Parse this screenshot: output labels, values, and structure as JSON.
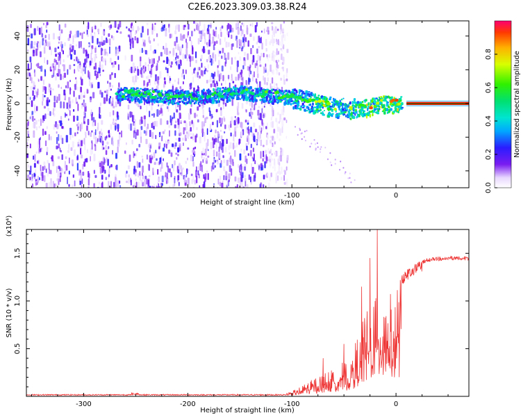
{
  "title": "C2E6.2023.309.03.38.R24",
  "chart_data": [
    {
      "type": "heatmap",
      "xlabel": "Height of straight line (km)",
      "ylabel": "Frequency (Hz)",
      "xlim": [
        -355,
        70
      ],
      "ylim": [
        -50,
        49
      ],
      "xticks": [
        -300,
        -200,
        -100,
        0
      ],
      "yticks": [
        -40,
        -20,
        0,
        20,
        40
      ],
      "colorbar": {
        "label": "Normalized spectral amplitude",
        "range": [
          0,
          1
        ],
        "ticks": [
          0.0,
          0.2,
          0.4,
          0.6,
          0.8
        ],
        "tick_labels": [
          "0.0",
          "0.2",
          "0.4",
          "0.6",
          "0.8"
        ]
      },
      "description_points": {
        "ridge_center_hz": [
          {
            "x": -260,
            "y": 6
          },
          {
            "x": -200,
            "y": 4
          },
          {
            "x": -150,
            "y": 7
          },
          {
            "x": -100,
            "y": 4
          },
          {
            "x": -60,
            "y": -2
          },
          {
            "x": -35,
            "y": -3
          },
          {
            "x": -15,
            "y": 0
          },
          {
            "x": 70,
            "y": 0
          }
        ],
        "noise_extent_x": [
          -355,
          -105
        ],
        "steady_line_x": [
          10,
          70
        ]
      }
    },
    {
      "type": "line",
      "xlabel": "Height of straight line (km)",
      "ylabel": "SNR (10 * v/v)",
      "y_multiplier": "(x10⁴)",
      "xlim": [
        -355,
        70
      ],
      "ylim": [
        0,
        1.75
      ],
      "xticks": [
        -300,
        -200,
        -100,
        0
      ],
      "yticks": [
        0.5,
        1.0,
        1.5
      ],
      "ytick_labels": [
        "0.5",
        "1.0",
        "1.5"
      ],
      "series": [
        {
          "color": "#ee3333",
          "envelope": [
            {
              "x": -355,
              "y": 0.01
            },
            {
              "x": -250,
              "y": 0.03
            },
            {
              "x": -120,
              "y": 0.02
            },
            {
              "x": -100,
              "y": 0.05
            },
            {
              "x": -80,
              "y": 0.18
            },
            {
              "x": -60,
              "y": 0.3
            },
            {
              "x": -45,
              "y": 0.4
            },
            {
              "x": -30,
              "y": 0.85
            },
            {
              "x": -20,
              "y": 1.1
            },
            {
              "x": -10,
              "y": 1.15
            },
            {
              "x": 0,
              "y": 1.22
            },
            {
              "x": 15,
              "y": 1.38
            },
            {
              "x": 30,
              "y": 1.45
            },
            {
              "x": 50,
              "y": 1.47
            },
            {
              "x": 70,
              "y": 1.47
            }
          ],
          "spikes": [
            {
              "x": -18,
              "y": 1.75
            },
            {
              "x": -25,
              "y": 1.45
            },
            {
              "x": -33,
              "y": 1.15
            },
            {
              "x": -50,
              "y": 0.55
            },
            {
              "x": -70,
              "y": 0.4
            }
          ]
        }
      ]
    }
  ]
}
